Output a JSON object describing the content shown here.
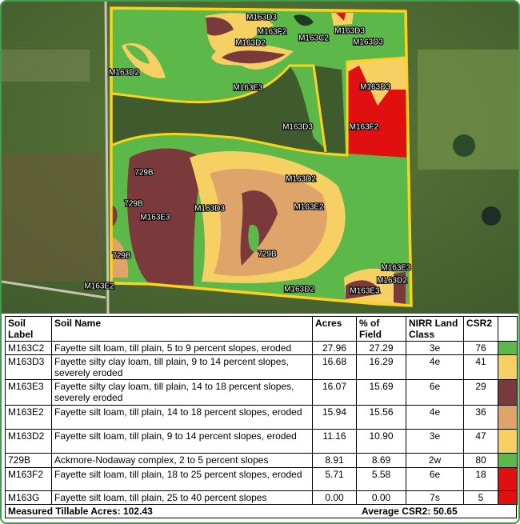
{
  "map": {
    "labels": [
      "M163D3",
      "M163D3",
      "M163F2",
      "M163C2",
      "M163D2",
      "M163D3",
      "M163D2",
      "M163E3",
      "M163D3",
      "M163D3",
      "M163F2",
      "729B",
      "M163D2",
      "M163D3",
      "M163E2",
      "729B",
      "M163E3",
      "729B",
      "729B",
      "M163E3",
      "M163D2",
      "M163E2",
      "M163D2",
      "M163E3"
    ]
  },
  "table": {
    "headers": [
      "Soil Label",
      "Soil Name",
      "Acres",
      "% of Field",
      "NIRR Land Class",
      "CSR2"
    ],
    "rows": [
      [
        "M163C2",
        "Fayette silt loam, till plain, 5 to 9 percent slopes, eroded",
        "27.96",
        "27.29",
        "3e",
        "76"
      ],
      [
        "M163D3",
        "Fayette silty clay loam, till plain, 9 to 14 percent slopes, severely eroded",
        "16.68",
        "16.29",
        "4e",
        "41"
      ],
      [
        "M163E3",
        "Fayette silty clay loam, till plain, 14 to 18 percent slopes, severely eroded",
        "16.07",
        "15.69",
        "6e",
        "29"
      ],
      [
        "M163E2",
        "Fayette silt loam, till plain, 14 to 18 percent slopes, eroded",
        "15.94",
        "15.56",
        "4e",
        "36"
      ],
      [
        "M163D2",
        "Fayette silt loam, till plain, 9 to 14 percent slopes, eroded",
        "11.16",
        "10.90",
        "3e",
        "47"
      ],
      [
        "729B",
        "Ackmore-Nodaway complex, 2 to 5 percent slopes",
        "8.91",
        "8.69",
        "2w",
        "80"
      ],
      [
        "M163F2",
        "Fayette silt loam, till plain, 18 to 25 percent slopes, eroded",
        "5.71",
        "5.58",
        "6e",
        "18"
      ],
      [
        "M163G",
        "Fayette silt loam, till plain, 25 to 40 percent slopes",
        "0.00",
        "0.00",
        "7s",
        "5"
      ]
    ],
    "colors": [
      "#5db84a",
      "#f7d064",
      "#7a3a3c",
      "#dea46a",
      "#f7d064",
      "#5db84a",
      "#e01010",
      "#e01010"
    ]
  },
  "footer": {
    "acres": "Measured Tillable Acres: 102.43",
    "csr": "Average CSR2: 50.65"
  }
}
